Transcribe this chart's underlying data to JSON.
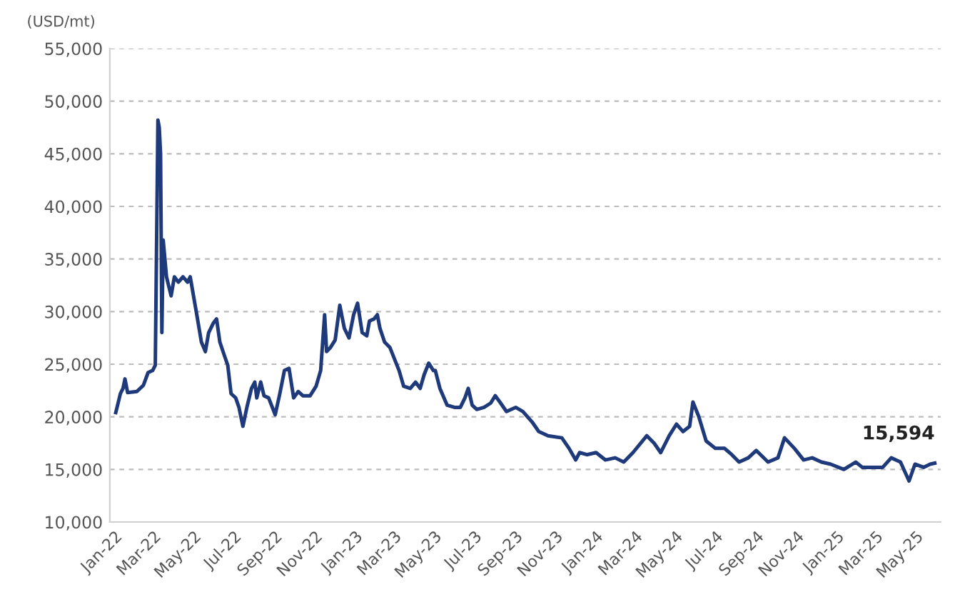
{
  "chart_data": {
    "type": "line",
    "ylabel": "(USD/mt)",
    "x": [
      "2022-01-03",
      "2022-01-05",
      "2022-01-10",
      "2022-01-14",
      "2022-01-17",
      "2022-01-21",
      "2022-02-04",
      "2022-02-14",
      "2022-02-21",
      "2022-02-28",
      "2022-03-04",
      "2022-03-08",
      "2022-03-10",
      "2022-03-12",
      "2022-03-14",
      "2022-03-16",
      "2022-03-21",
      "2022-03-28",
      "2022-04-02",
      "2022-04-08",
      "2022-04-15",
      "2022-04-22",
      "2022-04-26",
      "2022-05-01",
      "2022-05-06",
      "2022-05-13",
      "2022-05-19",
      "2022-05-24",
      "2022-05-31",
      "2022-06-05",
      "2022-06-10",
      "2022-06-17",
      "2022-06-22",
      "2022-06-27",
      "2022-07-04",
      "2022-07-09",
      "2022-07-15",
      "2022-07-21",
      "2022-07-28",
      "2022-08-02",
      "2022-08-05",
      "2022-08-11",
      "2022-08-16",
      "2022-08-23",
      "2022-09-02",
      "2022-09-09",
      "2022-09-16",
      "2022-09-23",
      "2022-09-30",
      "2022-10-07",
      "2022-10-14",
      "2022-10-25",
      "2022-11-03",
      "2022-11-10",
      "2022-11-16",
      "2022-11-19",
      "2022-11-25",
      "2022-12-02",
      "2022-12-09",
      "2022-12-16",
      "2022-12-23",
      "2022-12-30",
      "2023-01-05",
      "2023-01-12",
      "2023-01-19",
      "2023-01-23",
      "2023-01-30",
      "2023-02-04",
      "2023-02-08",
      "2023-02-15",
      "2023-02-23",
      "2023-03-02",
      "2023-03-09",
      "2023-03-16",
      "2023-03-26",
      "2023-04-03",
      "2023-04-10",
      "2023-04-16",
      "2023-04-23",
      "2023-04-30",
      "2023-05-03",
      "2023-05-10",
      "2023-05-21",
      "2023-06-01",
      "2023-06-10",
      "2023-06-17",
      "2023-06-22",
      "2023-06-28",
      "2023-07-05",
      "2023-07-16",
      "2023-07-26",
      "2023-08-02",
      "2023-08-09",
      "2023-08-19",
      "2023-09-02",
      "2023-09-13",
      "2023-09-27",
      "2023-10-07",
      "2023-10-21",
      "2023-11-11",
      "2023-11-22",
      "2023-12-02",
      "2023-12-08",
      "2023-12-19",
      "2024-01-02",
      "2024-01-16",
      "2024-01-31",
      "2024-02-13",
      "2024-02-27",
      "2024-03-19",
      "2024-03-30",
      "2024-04-09",
      "2024-04-22",
      "2024-05-03",
      "2024-05-13",
      "2024-05-23",
      "2024-05-28",
      "2024-06-06",
      "2024-06-17",
      "2024-07-01",
      "2024-07-15",
      "2024-07-26",
      "2024-08-06",
      "2024-08-20",
      "2024-09-01",
      "2024-09-19",
      "2024-10-04",
      "2024-10-14",
      "2024-10-29",
      "2024-11-12",
      "2024-11-25",
      "2024-12-09",
      "2024-12-23",
      "2025-01-12",
      "2025-01-30",
      "2025-02-09",
      "2025-02-27",
      "2025-03-12",
      "2025-03-25",
      "2025-04-08",
      "2025-04-21",
      "2025-04-30",
      "2025-05-13",
      "2025-05-23",
      "2025-05-30"
    ],
    "series": [
      {
        "color": "#1f3a7a",
        "values": [
          20400,
          20900,
          22200,
          22700,
          23600,
          22300,
          22400,
          23000,
          24200,
          24400,
          24900,
          48200,
          47500,
          45000,
          28000,
          36800,
          33300,
          31500,
          33300,
          32800,
          33300,
          32800,
          33300,
          31500,
          29700,
          27100,
          26200,
          28000,
          28900,
          29300,
          27100,
          25800,
          24900,
          22200,
          21800,
          20900,
          19100,
          20900,
          22700,
          23300,
          21800,
          23300,
          22000,
          21800,
          20200,
          22200,
          24400,
          24600,
          21800,
          22400,
          22000,
          22000,
          22900,
          24400,
          29700,
          26200,
          26600,
          27300,
          30600,
          28400,
          27500,
          29700,
          30800,
          28000,
          27700,
          29100,
          29300,
          29700,
          28400,
          27100,
          26600,
          25500,
          24400,
          22900,
          22700,
          23300,
          22700,
          24000,
          25100,
          24400,
          24400,
          22700,
          21100,
          20900,
          20900,
          21800,
          22700,
          21100,
          20700,
          20900,
          21300,
          22000,
          21400,
          20500,
          20900,
          20500,
          19500,
          18600,
          18200,
          18000,
          17000,
          15900,
          16600,
          16400,
          16600,
          15900,
          16100,
          15700,
          16600,
          18200,
          17500,
          16600,
          18200,
          19300,
          18600,
          19100,
          21400,
          20000,
          17700,
          17000,
          17000,
          16400,
          15700,
          16100,
          16800,
          15700,
          16100,
          18000,
          17000,
          15900,
          16100,
          15700,
          15500,
          15000,
          15700,
          15200,
          15200,
          15200,
          16100,
          15700,
          13900,
          15500,
          15200,
          15500,
          15594
        ]
      }
    ],
    "xlim": [
      "2021-12-25",
      "2025-06-08"
    ],
    "xticks": [
      {
        "value": "2022-01-01",
        "label": "Jan-22"
      },
      {
        "value": "2022-03-01",
        "label": "Mar-22"
      },
      {
        "value": "2022-05-01",
        "label": "May-22"
      },
      {
        "value": "2022-07-01",
        "label": "Jul-22"
      },
      {
        "value": "2022-09-01",
        "label": "Sep-22"
      },
      {
        "value": "2022-11-01",
        "label": "Nov-22"
      },
      {
        "value": "2023-01-01",
        "label": "Jan-23"
      },
      {
        "value": "2023-03-01",
        "label": "Mar-23"
      },
      {
        "value": "2023-05-01",
        "label": "May-23"
      },
      {
        "value": "2023-07-01",
        "label": "Jul-23"
      },
      {
        "value": "2023-09-01",
        "label": "Sep-23"
      },
      {
        "value": "2023-11-01",
        "label": "Nov-23"
      },
      {
        "value": "2024-01-01",
        "label": "Jan-24"
      },
      {
        "value": "2024-03-01",
        "label": "Mar-24"
      },
      {
        "value": "2024-05-01",
        "label": "May-24"
      },
      {
        "value": "2024-07-01",
        "label": "Jul-24"
      },
      {
        "value": "2024-09-01",
        "label": "Sep-24"
      },
      {
        "value": "2024-11-01",
        "label": "Nov-24"
      },
      {
        "value": "2025-01-01",
        "label": "Jan-25"
      },
      {
        "value": "2025-03-01",
        "label": "Mar-25"
      },
      {
        "value": "2025-05-01",
        "label": "May-25"
      }
    ],
    "ylim": [
      10000,
      55000
    ],
    "yticks": [
      {
        "value": 10000,
        "label": "10,000"
      },
      {
        "value": 15000,
        "label": "15,000"
      },
      {
        "value": 20000,
        "label": "20,000"
      },
      {
        "value": 25000,
        "label": "25,000"
      },
      {
        "value": 30000,
        "label": "30,000"
      },
      {
        "value": 35000,
        "label": "35,000"
      },
      {
        "value": 40000,
        "label": "40,000"
      },
      {
        "value": 45000,
        "label": "45,000"
      },
      {
        "value": 50000,
        "label": "50,000"
      },
      {
        "value": 55000,
        "label": "55,000"
      }
    ],
    "grid": "y",
    "marker": "none",
    "line_style": "solid",
    "legend": false,
    "annotations": [
      {
        "text": "15,594",
        "x": "2025-05-30",
        "y": 15594
      }
    ]
  }
}
